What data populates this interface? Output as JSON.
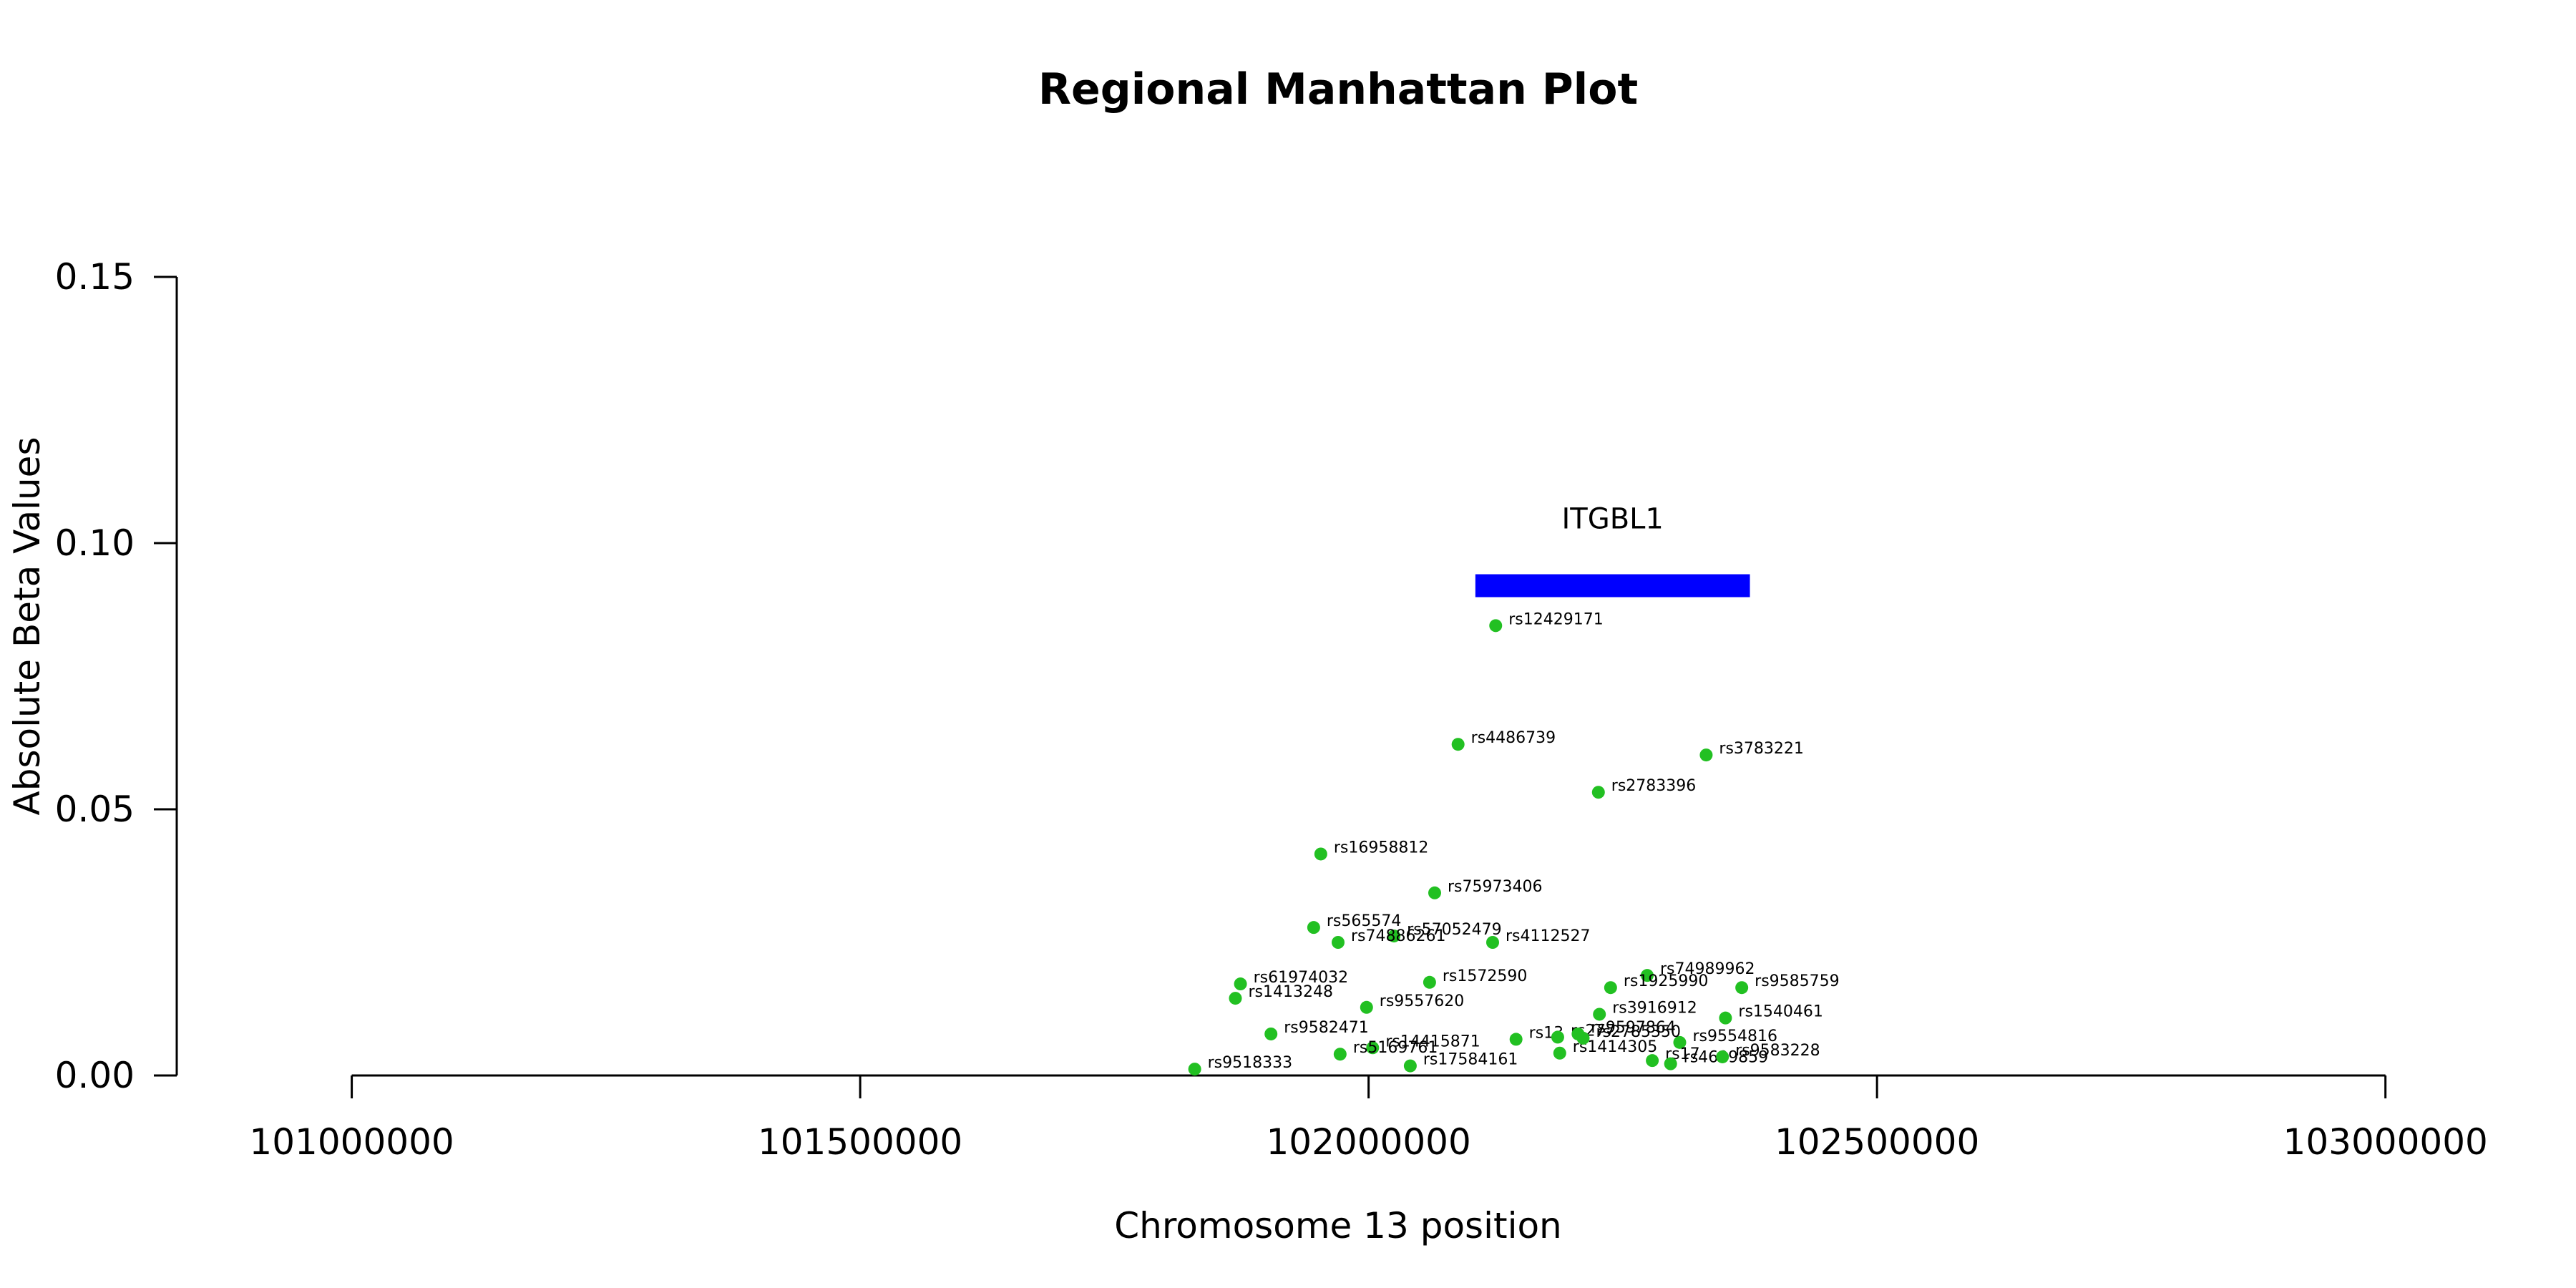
{
  "chart_data": {
    "type": "scatter",
    "title": "Regional Manhattan Plot",
    "xlabel": "Chromosome 13 position",
    "ylabel": "Absolute Beta Values",
    "xlim": [
      100830000,
      103110000
    ],
    "ylim": [
      0,
      0.15
    ],
    "x_ticks": [
      101000000,
      101500000,
      102000000,
      102500000,
      103000000
    ],
    "x_tick_labels": [
      "101000000",
      "101500000",
      "102000000",
      "102500000",
      "103000000"
    ],
    "y_ticks": [
      0,
      0.05,
      0.1,
      0.15
    ],
    "y_tick_labels": [
      "0.00",
      "0.05",
      "0.10",
      "0.15"
    ],
    "point_color": "#22c022",
    "gene_color": "#0000ff",
    "gene": {
      "name": "ITGBL1",
      "start": 102105000,
      "end": 102375000,
      "y": 0.092
    },
    "points": [
      {
        "name": "rs12429171",
        "x": 102125000,
        "y": 0.0845
      },
      {
        "name": "rs4486739",
        "x": 102088000,
        "y": 0.0622
      },
      {
        "name": "rs3783221",
        "x": 102332000,
        "y": 0.0602
      },
      {
        "name": "rs2783396",
        "x": 102226000,
        "y": 0.0532
      },
      {
        "name": "rs16958812",
        "x": 101953000,
        "y": 0.0416
      },
      {
        "name": "rs75973406",
        "x": 102065000,
        "y": 0.0343
      },
      {
        "name": "rs565574",
        "x": 101946000,
        "y": 0.0278
      },
      {
        "name": "rs57052479",
        "x": 102025000,
        "y": 0.0262
      },
      {
        "name": "rs74886261",
        "x": 101970000,
        "y": 0.025
      },
      {
        "name": "rs4112527",
        "x": 102122000,
        "y": 0.025
      },
      {
        "name": "rs74989962",
        "x": 102274000,
        "y": 0.0188
      },
      {
        "name": "rs61974032",
        "x": 101874000,
        "y": 0.0172
      },
      {
        "name": "rs1572590",
        "x": 102060000,
        "y": 0.0175
      },
      {
        "name": "rs1925990",
        "x": 102238000,
        "y": 0.0165
      },
      {
        "name": "rs9585759",
        "x": 102367000,
        "y": 0.0165
      },
      {
        "name": "rs1413248",
        "x": 101869000,
        "y": 0.0145
      },
      {
        "name": "rs9557620",
        "x": 101998000,
        "y": 0.0128
      },
      {
        "name": "rs3916912",
        "x": 102227000,
        "y": 0.0115
      },
      {
        "name": "rs1540461",
        "x": 102351000,
        "y": 0.0108
      },
      {
        "name": "rs9582471",
        "x": 101904000,
        "y": 0.0078
      },
      {
        "name": "rs13",
        "x": 102145000,
        "y": 0.0068
      },
      {
        "name": "rs9554816",
        "x": 102306000,
        "y": 0.0062
      },
      {
        "name": "rs14415871",
        "x": 102004000,
        "y": 0.0052
      },
      {
        "name": "rs5169761",
        "x": 101972000,
        "y": 0.004
      },
      {
        "name": "rs1414305",
        "x": 102188000,
        "y": 0.0042
      },
      {
        "name": "rs17584161",
        "x": 102041000,
        "y": 0.0018
      },
      {
        "name": "rs9518333",
        "x": 101829000,
        "y": 0.0012
      },
      {
        "name": "rs277",
        "x": 102186000,
        "y": 0.0072
      },
      {
        "name": "rs9597864",
        "x": 102206000,
        "y": 0.0078
      },
      {
        "name": "rs2785350",
        "x": 102211000,
        "y": 0.007
      },
      {
        "name": "rs17",
        "x": 102279000,
        "y": 0.0028
      },
      {
        "name": "rs4609859",
        "x": 102297000,
        "y": 0.0022
      },
      {
        "name": "rs9583228",
        "x": 102348000,
        "y": 0.0035
      }
    ]
  }
}
